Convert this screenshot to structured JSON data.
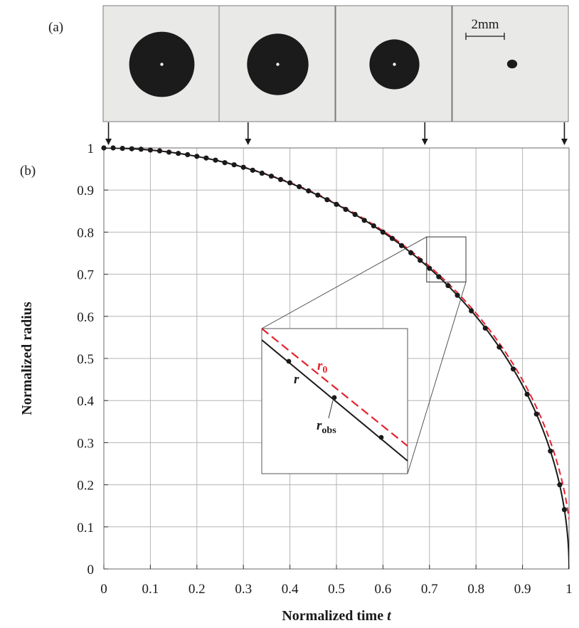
{
  "panel_labels": {
    "a": "(a)",
    "b": "(b)"
  },
  "scale_bar": {
    "label": "2mm"
  },
  "colors": {
    "data": "#1a1a1a",
    "ideal": "#e8202a",
    "frame_bg": "#e9e9e7",
    "drop": "#1b1b1b",
    "grid": "#b5b5b5"
  },
  "chart_data": {
    "type": "line",
    "xlabel": "Normalized time",
    "xlabel_var": "t",
    "ylabel": "Normalized radius",
    "xlim": [
      0,
      1
    ],
    "ylim": [
      0,
      1
    ],
    "x_ticks": [
      0,
      0.1,
      0.2,
      0.3,
      0.4,
      0.5,
      0.6,
      0.7,
      0.8,
      0.9,
      1
    ],
    "x_tick_labels": [
      "0",
      "0.1",
      "0.2",
      "0.3",
      "0.4",
      "0.5",
      "0.6",
      "0.7",
      "0.8",
      "0.9",
      "1"
    ],
    "y_ticks": [
      0,
      0.1,
      0.2,
      0.3,
      0.4,
      0.5,
      0.6,
      0.7,
      0.8,
      0.9,
      1
    ],
    "y_tick_labels": [
      "0",
      "0.1",
      "0.2",
      "0.3",
      "0.4",
      "0.5",
      "0.6",
      "0.7",
      "0.8",
      "0.9",
      "1"
    ],
    "grid": true,
    "series": [
      {
        "name": "r",
        "style": "solid-line",
        "function": "sqrt(1 - t^2)"
      },
      {
        "name": "r0",
        "style": "dashed-red-line",
        "function": "sqrt(1 - t^2)"
      },
      {
        "name": "r_obs",
        "style": "markers",
        "x": [
          0.0,
          0.02,
          0.04,
          0.06,
          0.08,
          0.1,
          0.12,
          0.14,
          0.16,
          0.18,
          0.2,
          0.22,
          0.24,
          0.26,
          0.28,
          0.3,
          0.32,
          0.34,
          0.36,
          0.38,
          0.4,
          0.42,
          0.44,
          0.46,
          0.48,
          0.5,
          0.52,
          0.54,
          0.56,
          0.58,
          0.6,
          0.62,
          0.64,
          0.66,
          0.68,
          0.7,
          0.72,
          0.74,
          0.76,
          0.79,
          0.82,
          0.85,
          0.88,
          0.91,
          0.93,
          0.96,
          0.98,
          0.99
        ],
        "y": [
          1.0,
          1.0,
          0.999,
          0.998,
          0.997,
          0.995,
          0.993,
          0.99,
          0.987,
          0.984,
          0.98,
          0.976,
          0.971,
          0.965,
          0.96,
          0.954,
          0.947,
          0.94,
          0.933,
          0.925,
          0.917,
          0.908,
          0.898,
          0.888,
          0.877,
          0.866,
          0.854,
          0.842,
          0.828,
          0.815,
          0.8,
          0.785,
          0.768,
          0.751,
          0.733,
          0.714,
          0.694,
          0.673,
          0.65,
          0.613,
          0.572,
          0.527,
          0.475,
          0.415,
          0.368,
          0.28,
          0.2,
          0.141
        ]
      }
    ],
    "annotations": {
      "arrow_times": [
        0.01,
        0.31,
        0.69,
        0.99
      ],
      "zoom_box": {
        "x": [
          0.7,
          0.76
        ],
        "y": [
          0.69,
          0.76
        ]
      },
      "inset_labels": {
        "r": "r",
        "r0_base": "r",
        "r0_sub": "0",
        "robs_base": "r",
        "robs_sub": "obs"
      }
    }
  },
  "frames": [
    {
      "drop_diameter_mm": 3.4,
      "time": 0.01
    },
    {
      "drop_diameter_mm": 3.2,
      "time": 0.31
    },
    {
      "drop_diameter_mm": 2.6,
      "time": 0.69
    },
    {
      "drop_diameter_mm": 0.6,
      "time": 0.99
    }
  ]
}
